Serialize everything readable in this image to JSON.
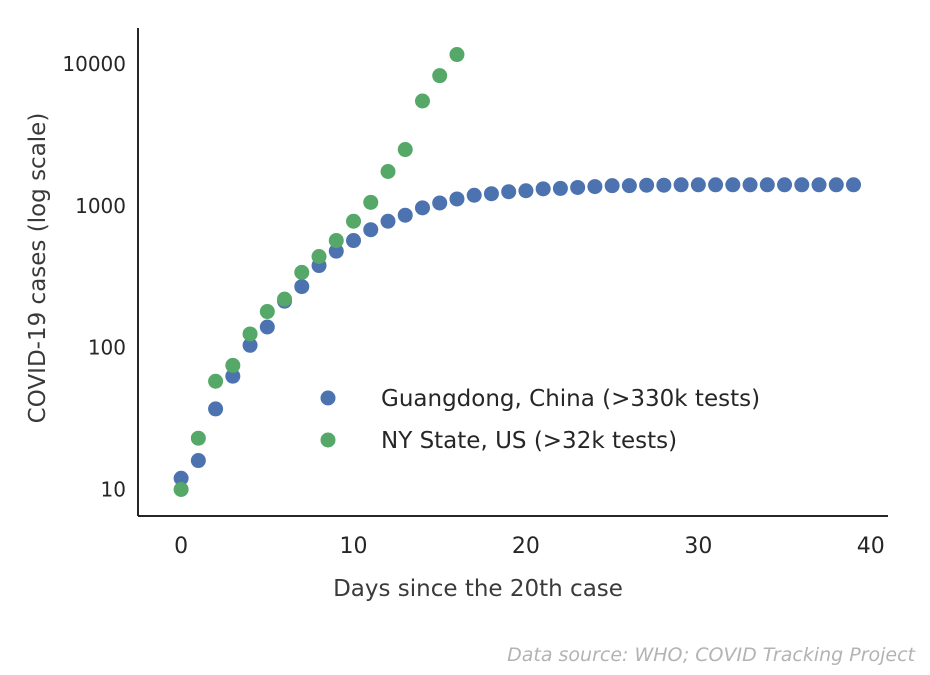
{
  "chart_data": {
    "type": "scatter",
    "title": "",
    "xlabel": "Days since the 20th case",
    "ylabel": "COVID-19 cases (log scale)",
    "y_scale": "log",
    "xlim": [
      -2.5,
      41
    ],
    "ylim": [
      6.5,
      18000
    ],
    "x_ticks": [
      0,
      10,
      20,
      30,
      40
    ],
    "y_ticks": [
      {
        "value": 10,
        "label": "10"
      },
      {
        "value": 100,
        "label": "100"
      },
      {
        "value": 1000,
        "label": "1000"
      },
      {
        "value": 10000,
        "label": "10000"
      }
    ],
    "grid": false,
    "legend_position": "lower-right",
    "series": [
      {
        "name": "Guangdong, China (>330k tests)",
        "color": "#4c72b0",
        "x": [
          0,
          1,
          2,
          3,
          4,
          5,
          6,
          7,
          8,
          9,
          10,
          11,
          12,
          13,
          14,
          15,
          16,
          17,
          18,
          19,
          20,
          21,
          22,
          23,
          24,
          25,
          26,
          27,
          28,
          29,
          30,
          31,
          32,
          33,
          34,
          35,
          36,
          37,
          38,
          39
        ],
        "y": [
          12,
          16,
          37,
          63,
          104,
          140,
          213,
          270,
          380,
          480,
          570,
          680,
          780,
          860,
          970,
          1050,
          1120,
          1190,
          1220,
          1260,
          1280,
          1320,
          1330,
          1350,
          1370,
          1390,
          1390,
          1400,
          1400,
          1410,
          1410,
          1410,
          1410,
          1410,
          1410,
          1410,
          1410,
          1410,
          1410,
          1410
        ]
      },
      {
        "name": "NY State, US (>32k tests)",
        "color": "#55a868",
        "x": [
          0,
          1,
          2,
          3,
          4,
          5,
          6,
          7,
          8,
          9,
          10,
          11,
          12,
          13,
          14,
          15,
          16
        ],
        "y": [
          10,
          23,
          58,
          75,
          125,
          180,
          220,
          340,
          440,
          570,
          780,
          1060,
          1750,
          2500,
          5500,
          8300,
          11700
        ]
      }
    ],
    "annotations": [
      "Data source: WHO; COVID Tracking Project"
    ]
  }
}
